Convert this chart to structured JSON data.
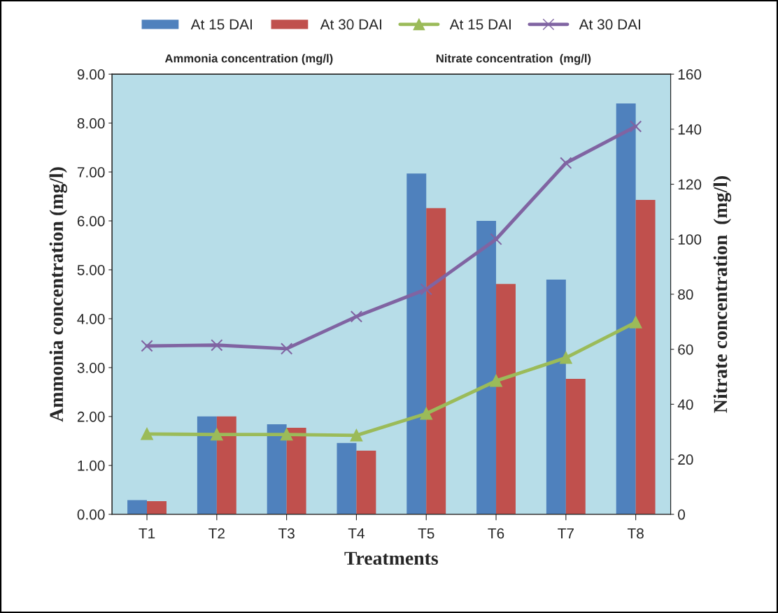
{
  "chart_data": {
    "type": "bar",
    "xlabel": "Treatments",
    "ylabel": "Ammonia concentration (mg/l)",
    "y2label": "Nitrate concentration  (mg/l)",
    "categories": [
      "T1",
      "T2",
      "T3",
      "T4",
      "T5",
      "T6",
      "T7",
      "T8"
    ],
    "series": [
      {
        "name": "At 15 DAI",
        "color": "#4f81bd",
        "values": [
          0.29,
          2.0,
          1.84,
          1.46,
          6.97,
          6.0,
          4.8,
          8.4
        ]
      },
      {
        "name": "At 30 DAI",
        "color": "#c0504d",
        "values": [
          0.27,
          2.0,
          1.77,
          1.3,
          6.26,
          4.71,
          2.77,
          6.43
        ]
      },
      {
        "name": "At 15 DAI",
        "type": "line",
        "axis": "y2",
        "marker": "triangle",
        "color": "#9bbb59",
        "values": [
          29.2,
          29.0,
          29.0,
          28.7,
          36.6,
          48.5,
          56.9,
          69.8
        ]
      },
      {
        "name": "At 30 DAI",
        "type": "line",
        "axis": "y2",
        "marker": "cross",
        "color": "#8064a2",
        "values": [
          61.2,
          61.5,
          60.2,
          71.9,
          81.8,
          100,
          127.7,
          141
        ]
      }
    ],
    "ylim": [
      0,
      9
    ],
    "yticks": [
      {
        "value": 0,
        "label": "0.00"
      },
      {
        "value": 1,
        "label": "1.00"
      },
      {
        "value": 2,
        "label": "2.00"
      },
      {
        "value": 3,
        "label": "3.00"
      },
      {
        "value": 4,
        "label": "4.00"
      },
      {
        "value": 5,
        "label": "5.00"
      },
      {
        "value": 6,
        "label": "6.00"
      },
      {
        "value": 7,
        "label": "7.00"
      },
      {
        "value": 8,
        "label": "8.00"
      },
      {
        "value": 9,
        "label": "9.00"
      }
    ],
    "y2lim": [
      0,
      160
    ],
    "y2ticks": [
      0,
      20,
      40,
      60,
      80,
      100,
      120,
      140,
      160
    ],
    "annotations": [
      "Ammonia concentration (mg/l)",
      "Nitrate concentration  (mg/l)"
    ],
    "legend": "top",
    "grid": false
  }
}
